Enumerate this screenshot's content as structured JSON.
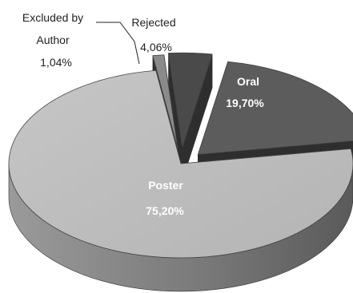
{
  "chart_data": {
    "type": "pie",
    "style": "3d-exploded",
    "title": "",
    "slices": [
      {
        "label": "Oral",
        "value": 19.7,
        "value_text": "19,70%",
        "color": "#5c5c5c"
      },
      {
        "label": "Poster",
        "value": 75.2,
        "value_text": "75,20%",
        "color": "#bdbdbd"
      },
      {
        "label": "Excluded by Author",
        "label_lines": [
          "Excluded by",
          "Author"
        ],
        "value": 1.04,
        "value_text": "1,04%",
        "color": "#8a8a8a"
      },
      {
        "label": "Rejected",
        "value": 4.06,
        "value_text": "4,06%",
        "color": "#4a4a4a"
      }
    ],
    "legend": "none",
    "label_colors": {
      "inside": "#ffffff",
      "outside": "#222222"
    }
  }
}
